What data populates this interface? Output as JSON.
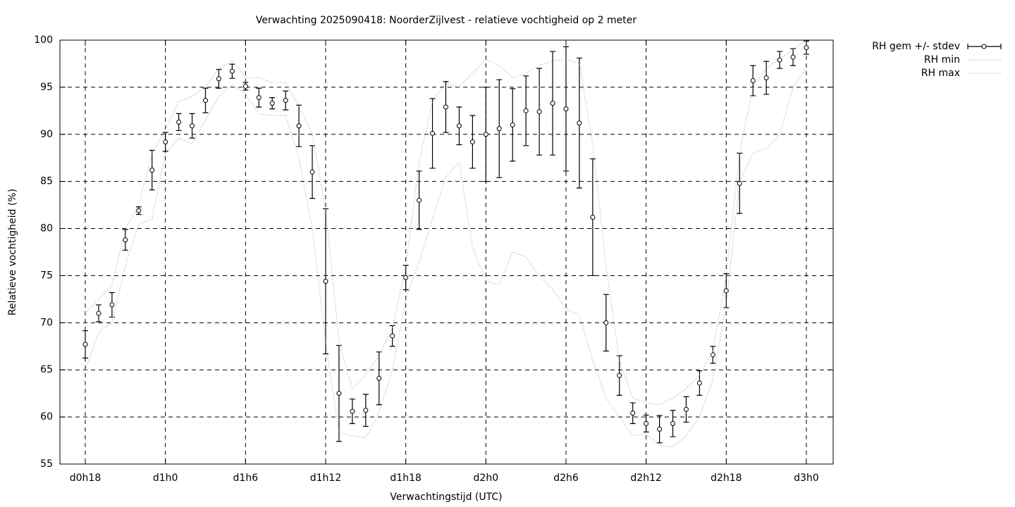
{
  "chart_data": {
    "type": "errorbar",
    "title": "Verwachting 2025090418: NoorderZijlvest - relatieve vochtigheid op 2 meter",
    "x_label": "Verwachtingstijd (UTC)",
    "y_label": "Relatieve vochtigheid (%)",
    "categories": [
      "d0h18",
      null,
      null,
      null,
      null,
      null,
      "d1h0",
      null,
      null,
      null,
      null,
      null,
      "d1h6",
      null,
      null,
      null,
      null,
      null,
      "d1h12",
      null,
      null,
      null,
      null,
      null,
      "d1h18",
      null,
      null,
      null,
      null,
      null,
      "d2h0",
      null,
      null,
      null,
      null,
      null,
      "d2h6",
      null,
      null,
      null,
      null,
      null,
      "d2h12",
      null,
      null,
      null,
      null,
      null,
      "d2h18",
      null,
      null,
      null,
      null,
      null,
      "d3h0"
    ],
    "series": [
      {
        "name": "RH gem +/- stdev",
        "color": "#000000",
        "values": [
          67.7,
          71.0,
          71.9,
          78.8,
          81.9,
          86.2,
          89.2,
          91.3,
          90.9,
          93.6,
          95.9,
          96.7,
          95.1,
          93.9,
          93.3,
          93.6,
          90.9,
          86.0,
          74.4,
          62.5,
          60.6,
          60.7,
          64.1,
          68.6,
          74.8,
          83.0,
          90.1,
          92.9,
          90.9,
          89.2,
          90.0,
          90.6,
          91.0,
          92.5,
          92.4,
          93.3,
          92.7,
          91.2,
          81.2,
          70.0,
          64.4,
          60.4,
          59.3,
          58.7,
          59.3,
          60.8,
          63.6,
          66.6,
          73.4,
          84.8,
          95.7,
          96.0,
          97.9,
          98.2,
          99.2
        ],
        "errors": [
          1.45,
          0.9,
          1.3,
          1.1,
          0.4,
          2.1,
          1.0,
          0.9,
          1.3,
          1.3,
          1.0,
          0.75,
          0.4,
          1.0,
          0.6,
          1.0,
          2.2,
          2.8,
          7.7,
          5.1,
          1.3,
          1.7,
          2.8,
          1.1,
          1.3,
          3.1,
          3.7,
          2.7,
          2.0,
          2.8,
          5.0,
          5.2,
          3.85,
          3.7,
          4.6,
          5.5,
          6.6,
          6.9,
          6.2,
          3.0,
          2.1,
          1.1,
          0.9,
          1.45,
          1.4,
          1.35,
          1.3,
          0.9,
          1.8,
          3.2,
          1.6,
          1.75,
          0.9,
          0.9,
          0.7
        ]
      },
      {
        "name": "RH min",
        "color": "#a0a0a0",
        "values": [
          65,
          69,
          70,
          76,
          80.5,
          81,
          88,
          89.6,
          89,
          91.5,
          94,
          95.3,
          94.3,
          92.2,
          92,
          92,
          87.5,
          80,
          68,
          58.3,
          58,
          57.8,
          60.5,
          65,
          72.5,
          76.5,
          81,
          85.5,
          87,
          78,
          74.5,
          74,
          77.5,
          77,
          75,
          73.5,
          71.5,
          70.8,
          66,
          62,
          60,
          58,
          58.2,
          57,
          56.8,
          58,
          60,
          64,
          72,
          85,
          88,
          88.5,
          90,
          95,
          97
        ]
      },
      {
        "name": "RH max",
        "color": "#a0a0a0",
        "values": [
          71,
          72.5,
          74,
          80,
          82.5,
          88,
          90.5,
          93.5,
          94,
          95,
          97,
          97.8,
          96,
          96,
          95.5,
          95.5,
          93,
          90,
          82,
          68,
          63,
          64.5,
          66.5,
          69.5,
          76,
          87,
          93.5,
          95.5,
          95,
          96.5,
          98,
          97.3,
          96,
          96.5,
          97.3,
          97.8,
          98,
          97.5,
          89,
          76,
          66,
          62,
          61.5,
          61.3,
          62,
          63,
          64.5,
          67,
          75,
          88,
          95,
          97,
          98,
          99,
          100
        ]
      }
    ],
    "ylim": [
      55,
      100
    ],
    "yticks": [
      55,
      60,
      65,
      70,
      75,
      80,
      85,
      90,
      95,
      100
    ],
    "grid": true,
    "legend": "outside-right"
  }
}
